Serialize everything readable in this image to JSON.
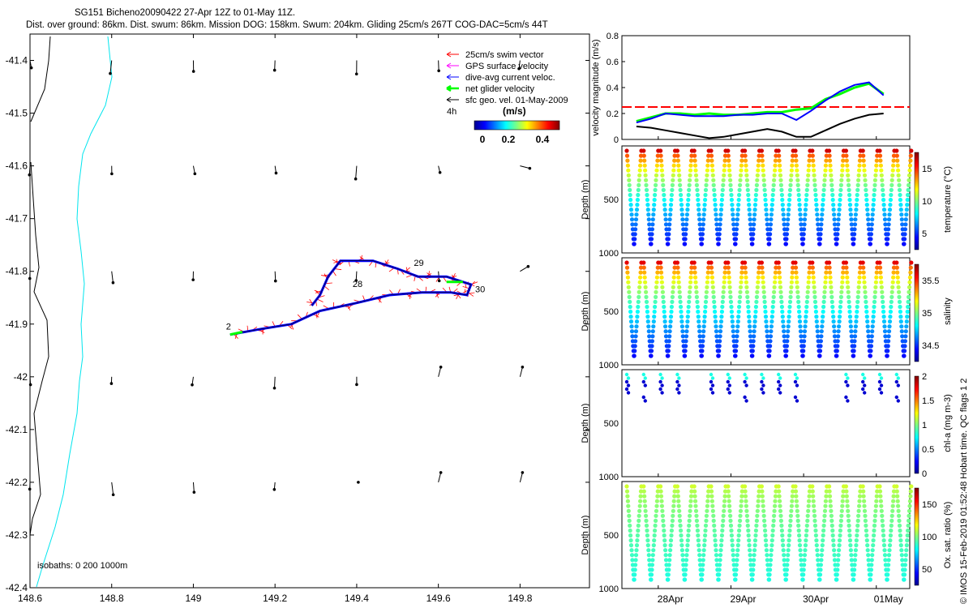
{
  "header": {
    "line1": "SG151 Bicheno20090422 27-Apr 12Z to 01-May 11Z.",
    "line2": "Dist. over ground: 86km. Dist. swum: 86km. Mission DOG: 158km. Swum: 204km. Gliding 25cm/s 267T COG-DAC=5cm/s 44T"
  },
  "map": {
    "xticks": [
      "148.6",
      "148.8",
      "149",
      "149.2",
      "149.4",
      "149.6",
      "149.8"
    ],
    "yticks": [
      "-41.4",
      "-41.5",
      "-41.6",
      "-41.7",
      "-41.8",
      "-41.9",
      "-42",
      "-42.1",
      "-42.2",
      "-42.3",
      "-42.4"
    ],
    "xlim": [
      148.6,
      149.97
    ],
    "ylim": [
      -42.4,
      -41.35
    ],
    "legend": [
      {
        "label": "25cm/s swim vector",
        "color": "#ff0000"
      },
      {
        "label": "GPS surface velocity",
        "color": "#ff00ff"
      },
      {
        "label": "dive-avg current veloc.",
        "color": "#0000ff"
      },
      {
        "label": "net glider velocity",
        "color": "#00ff00"
      },
      {
        "label": "sfc geo. vel. 01-May-2009",
        "color": "#000000"
      }
    ],
    "time_label": "4h",
    "colorbar_title": "(m/s)",
    "colorbar_ticks": [
      "0",
      "0.2",
      "0.4"
    ],
    "isobath_label": "isobaths: 0   200  1000m",
    "day_labels": [
      {
        "text": "2",
        "lon": 149.08,
        "lat": -41.91
      },
      {
        "text": "28",
        "lon": 149.39,
        "lat": -41.83
      },
      {
        "text": "29",
        "lon": 149.54,
        "lat": -41.79
      },
      {
        "text": "30",
        "lon": 149.69,
        "lat": -41.84
      }
    ]
  },
  "vel_panel": {
    "ylabel": "velocity magnitude (m/s)",
    "yticks": [
      "0",
      "0.2",
      "0.4",
      "0.6",
      "0.8"
    ],
    "ylim": [
      0,
      0.8
    ],
    "reference_line": 0.25
  },
  "profile_panels": [
    {
      "name": "temperature",
      "cbar_label": "temperature (°C)",
      "cbar_ticks": [
        "5",
        "10",
        "15"
      ],
      "ylabel": "Depth (m)",
      "yticks": [
        "500",
        "1000"
      ]
    },
    {
      "name": "salinity",
      "cbar_label": "salinity",
      "cbar_ticks": [
        "34.5",
        "35",
        "35.5"
      ],
      "ylabel": "Depth (m)",
      "yticks": [
        "500",
        "1000"
      ]
    },
    {
      "name": "chl-a",
      "cbar_label": "chl-a (mg m-3)",
      "cbar_ticks": [
        "0",
        "0.5",
        "1",
        "1.5",
        "2"
      ],
      "ylabel": "Depth (m)",
      "yticks": [
        "500",
        "1000"
      ]
    },
    {
      "name": "oxygen",
      "cbar_label": "Ox. sat. ratio (%)",
      "cbar_ticks": [
        "50",
        "100",
        "150"
      ],
      "ylabel": "Depth (m)",
      "yticks": [
        "500",
        "1000"
      ]
    }
  ],
  "time_axis": {
    "ticks": [
      "28Apr",
      "29Apr",
      "30Apr",
      "01May"
    ]
  },
  "footer": "© IMOS 15-Feb-2019 01:52:48 Hobart time. QC flags 1 2",
  "chart_data": [
    {
      "type": "scatter",
      "title": "SG151 Bicheno20090422 27-Apr 12Z to 01-May 11Z.",
      "xlim": [
        148.6,
        149.97
      ],
      "ylim": [
        -42.4,
        -41.35
      ],
      "track": [
        {
          "lon": 149.09,
          "lat": -41.92
        },
        {
          "lon": 149.16,
          "lat": -41.91
        },
        {
          "lon": 149.24,
          "lat": -41.9
        },
        {
          "lon": 149.31,
          "lat": -41.875
        },
        {
          "lon": 149.4,
          "lat": -41.86
        },
        {
          "lon": 149.48,
          "lat": -41.845
        },
        {
          "lon": 149.56,
          "lat": -41.84
        },
        {
          "lon": 149.63,
          "lat": -41.84
        },
        {
          "lon": 149.67,
          "lat": -41.845
        },
        {
          "lon": 149.68,
          "lat": -41.825
        },
        {
          "lon": 149.62,
          "lat": -41.81
        },
        {
          "lon": 149.55,
          "lat": -41.81
        },
        {
          "lon": 149.5,
          "lat": -41.795
        },
        {
          "lon": 149.44,
          "lat": -41.78
        },
        {
          "lon": 149.36,
          "lat": -41.78
        },
        {
          "lon": 149.33,
          "lat": -41.81
        },
        {
          "lon": 149.31,
          "lat": -41.845
        },
        {
          "lon": 149.29,
          "lat": -41.865
        }
      ],
      "geo_vectors_grid": {
        "lons": [
          148.6,
          148.8,
          149.0,
          149.2,
          149.4,
          149.6,
          149.8
        ],
        "lats": [
          -41.4,
          -41.6,
          -41.8,
          -42.0,
          -42.2
        ]
      }
    },
    {
      "type": "line",
      "ylabel": "velocity magnitude (m/s)",
      "ylim": [
        0,
        0.8
      ],
      "x": [
        "27.7",
        "27.9",
        "28.1",
        "28.3",
        "28.5",
        "28.7",
        "28.9",
        "29.1",
        "29.3",
        "29.5",
        "29.7",
        "29.9",
        "30.1",
        "30.3",
        "30.5",
        "30.7",
        "30.9",
        "31.1"
      ],
      "series": [
        {
          "name": "net glider velocity",
          "color": "#00ff00",
          "values": [
            0.14,
            0.17,
            0.2,
            0.2,
            0.19,
            0.2,
            0.19,
            0.19,
            0.2,
            0.21,
            0.21,
            0.23,
            0.24,
            0.31,
            0.35,
            0.4,
            0.43,
            0.35
          ]
        },
        {
          "name": "dive-avg current veloc.",
          "color": "#0000ff",
          "values": [
            0.13,
            0.16,
            0.2,
            0.19,
            0.18,
            0.18,
            0.18,
            0.19,
            0.19,
            0.2,
            0.2,
            0.15,
            0.22,
            0.3,
            0.37,
            0.42,
            0.44,
            0.34
          ]
        },
        {
          "name": "sfc geo. vel.",
          "color": "#000000",
          "values": [
            0.1,
            0.09,
            0.07,
            0.05,
            0.03,
            0.01,
            0.02,
            0.04,
            0.06,
            0.08,
            0.06,
            0.02,
            0.02,
            0.07,
            0.12,
            0.16,
            0.19,
            0.2
          ]
        }
      ]
    }
  ]
}
